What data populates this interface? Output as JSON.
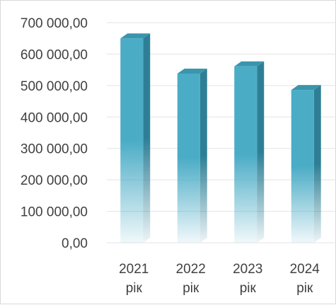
{
  "chart_data": {
    "type": "bar",
    "title": "",
    "xlabel": "",
    "ylabel": "",
    "categories": [
      [
        "2021",
        "рік"
      ],
      [
        "2022",
        "рік"
      ],
      [
        "2023",
        "рік"
      ],
      [
        "2024",
        "рік"
      ]
    ],
    "series": [
      {
        "values": [
          650000,
          538000,
          561000,
          486000
        ]
      }
    ],
    "ylim": [
      0,
      700000
    ],
    "yticks": [
      {
        "value": 0,
        "label": "0,00"
      },
      {
        "value": 100000,
        "label": "100 000,00"
      },
      {
        "value": 200000,
        "label": "200 000,00"
      },
      {
        "value": 300000,
        "label": "300 000,00"
      },
      {
        "value": 400000,
        "label": "400 000,00"
      },
      {
        "value": 500000,
        "label": "500 000,00"
      },
      {
        "value": 600000,
        "label": "600 000,00"
      },
      {
        "value": 700000,
        "label": "700 000,00"
      }
    ],
    "grid": true,
    "legend": "none",
    "colors": {
      "bar_front": "#4bacc6",
      "bar_side": "#2e7f95",
      "bar_top": "#3a95ad",
      "grid": "#e3e3e3",
      "text": "#404040"
    }
  }
}
